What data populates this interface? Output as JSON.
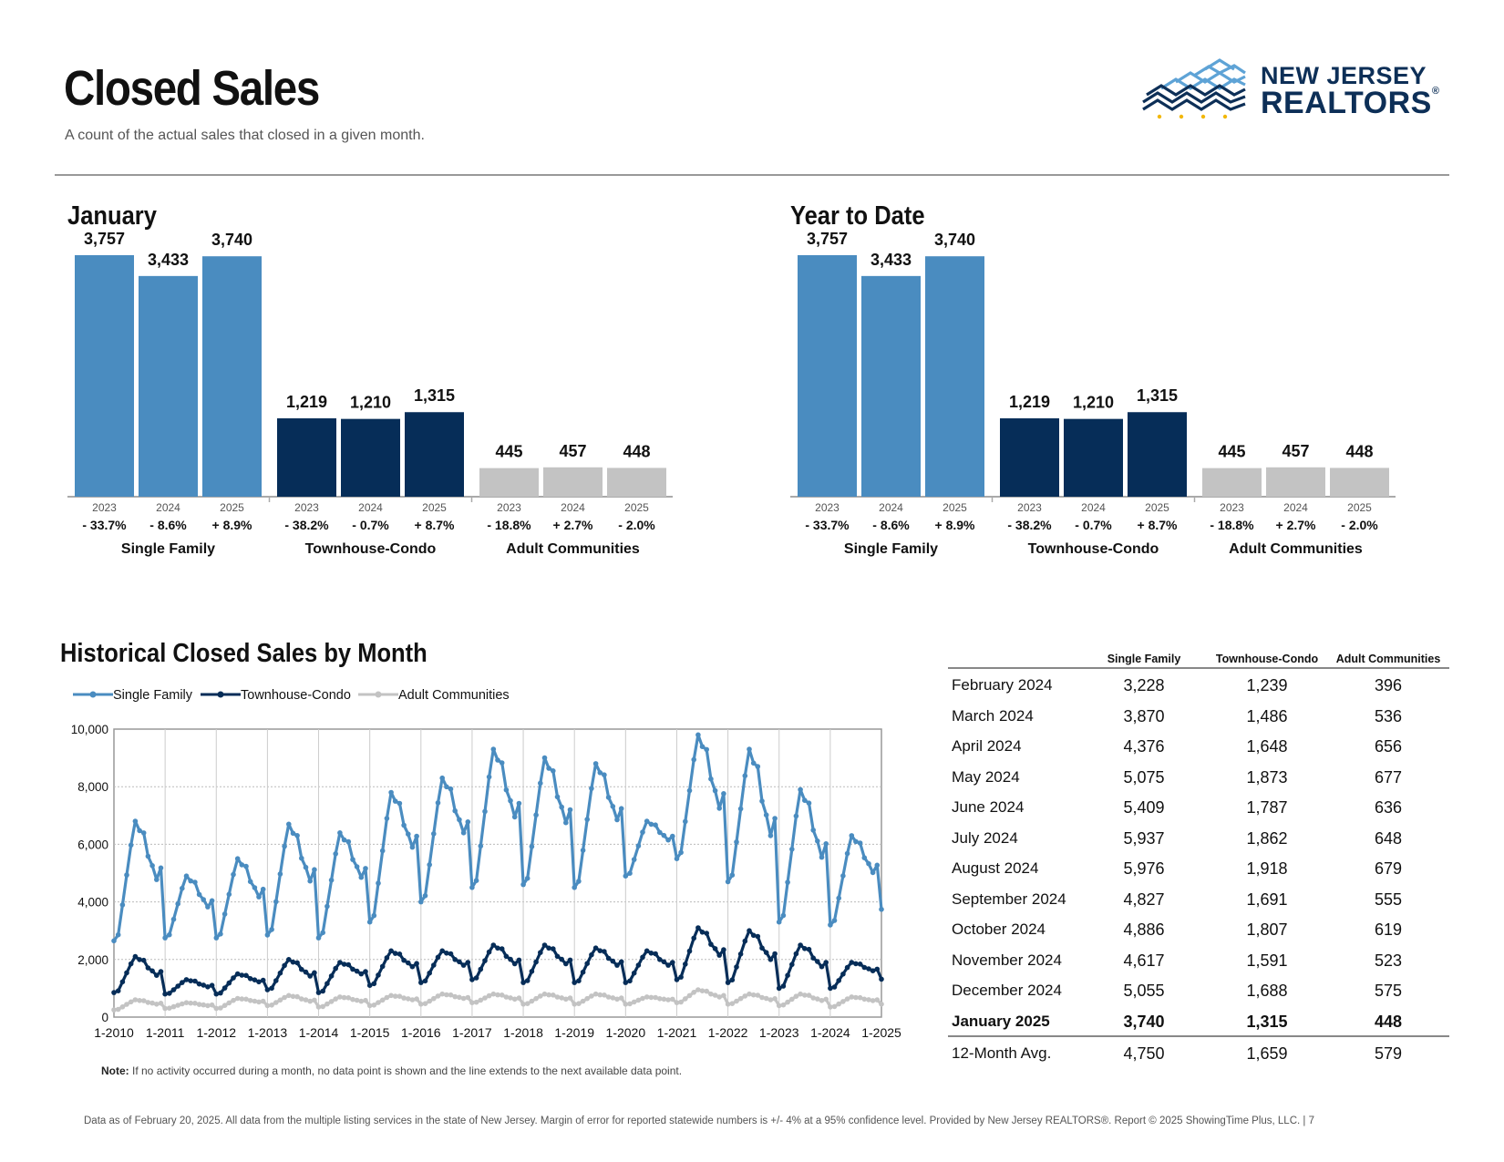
{
  "header": {
    "title": "Closed Sales",
    "subtitle": "A count of the actual sales that closed in a given month."
  },
  "logo": {
    "line1": "NEW JERSEY",
    "line2": "REALTORS",
    "reg": "®"
  },
  "colors": {
    "single_family": "#4a8cc0",
    "townhouse_condo": "#062d58",
    "adult_communities": "#c3c3c3",
    "logo_navy": "#0d2f57",
    "logo_light": "#5ea3d6",
    "logo_gold": "#f2b705"
  },
  "chart_data": [
    {
      "type": "bar",
      "title": "January",
      "groups": [
        "Single Family",
        "Townhouse-Condo",
        "Adult Communities"
      ],
      "years": [
        "2023",
        "2024",
        "2025"
      ],
      "series": [
        {
          "name": "Single Family",
          "values": [
            3757,
            3433,
            3740
          ],
          "labels": [
            "3,757",
            "3,433",
            "3,740"
          ],
          "changes": [
            "- 33.7%",
            "- 8.6%",
            "+ 8.9%"
          ]
        },
        {
          "name": "Townhouse-Condo",
          "values": [
            1219,
            1210,
            1315
          ],
          "labels": [
            "1,219",
            "1,210",
            "1,315"
          ],
          "changes": [
            "- 38.2%",
            "- 0.7%",
            "+ 8.7%"
          ]
        },
        {
          "name": "Adult Communities",
          "values": [
            445,
            457,
            448
          ],
          "labels": [
            "445",
            "457",
            "448"
          ],
          "changes": [
            "- 18.8%",
            "+ 2.7%",
            "- 2.0%"
          ]
        }
      ]
    },
    {
      "type": "bar",
      "title": "Year to Date",
      "groups": [
        "Single Family",
        "Townhouse-Condo",
        "Adult Communities"
      ],
      "years": [
        "2023",
        "2024",
        "2025"
      ],
      "series": [
        {
          "name": "Single Family",
          "values": [
            3757,
            3433,
            3740
          ],
          "labels": [
            "3,757",
            "3,433",
            "3,740"
          ],
          "changes": [
            "- 33.7%",
            "- 8.6%",
            "+ 8.9%"
          ]
        },
        {
          "name": "Townhouse-Condo",
          "values": [
            1219,
            1210,
            1315
          ],
          "labels": [
            "1,219",
            "1,210",
            "1,315"
          ],
          "changes": [
            "- 38.2%",
            "- 0.7%",
            "+ 8.7%"
          ]
        },
        {
          "name": "Adult Communities",
          "values": [
            445,
            457,
            448
          ],
          "labels": [
            "445",
            "457",
            "448"
          ],
          "changes": [
            "- 18.8%",
            "+ 2.7%",
            "- 2.0%"
          ]
        }
      ]
    },
    {
      "type": "line",
      "title": "Historical Closed Sales by Month",
      "x_ticks": [
        "1-2010",
        "1-2011",
        "1-2012",
        "1-2013",
        "1-2014",
        "1-2015",
        "1-2016",
        "1-2017",
        "1-2018",
        "1-2019",
        "1-2020",
        "1-2021",
        "1-2022",
        "1-2023",
        "1-2024",
        "1-2025"
      ],
      "y_ticks": [
        "0",
        "2,000",
        "4,000",
        "6,000",
        "8,000",
        "10,000"
      ],
      "ylim": [
        0,
        10000
      ],
      "grid": true,
      "legend": "top-left",
      "series": [
        {
          "name": "Single Family",
          "seasonal": {
            "jan": [
              2650,
              2750,
              2750,
              2850,
              2750,
              3300,
              4000,
              4500,
              4600,
              4500,
              4900,
              5500,
              4700,
              3300,
              3200,
              3740
            ],
            "jun": [
              6800,
              4900,
              5500,
              6700,
              6400,
              7800,
              8300,
              9300,
              9000,
              8800,
              6800,
              9800,
              9300,
              7900,
              6300,
              5976
            ]
          }
        },
        {
          "name": "Townhouse-Condo",
          "seasonal": {
            "jan": [
              850,
              800,
              800,
              950,
              850,
              1100,
              1200,
              1300,
              1200,
              1200,
              1200,
              1300,
              1200,
              1000,
              1000,
              1315
            ],
            "jun": [
              2100,
              1300,
              1500,
              2000,
              1900,
              2300,
              2300,
              2500,
              2500,
              2400,
              2300,
              3100,
              3000,
              2500,
              1900,
              1918
            ]
          }
        },
        {
          "name": "Adult Communities",
          "seasonal": {
            "jan": [
              250,
              300,
              300,
              400,
              350,
              400,
              450,
              500,
              450,
              450,
              450,
              500,
              450,
              400,
              350,
              448
            ],
            "jun": [
              600,
              500,
              650,
              750,
              700,
              750,
              800,
              800,
              800,
              800,
              700,
              950,
              800,
              800,
              700,
              679
            ]
          }
        }
      ],
      "note_label": "Note:",
      "note": " If no activity occurred during a month, no data point is shown and the line extends to the next available data point."
    },
    {
      "type": "table",
      "columns": [
        "",
        "Single Family",
        "Townhouse-Condo",
        "Adult Communities"
      ],
      "rows": [
        [
          "February 2024",
          "3,228",
          "1,239",
          "396"
        ],
        [
          "March 2024",
          "3,870",
          "1,486",
          "536"
        ],
        [
          "April 2024",
          "4,376",
          "1,648",
          "656"
        ],
        [
          "May 2024",
          "5,075",
          "1,873",
          "677"
        ],
        [
          "June 2024",
          "5,409",
          "1,787",
          "636"
        ],
        [
          "July 2024",
          "5,937",
          "1,862",
          "648"
        ],
        [
          "August 2024",
          "5,976",
          "1,918",
          "679"
        ],
        [
          "September 2024",
          "4,827",
          "1,691",
          "555"
        ],
        [
          "October 2024",
          "4,886",
          "1,807",
          "619"
        ],
        [
          "November 2024",
          "4,617",
          "1,591",
          "523"
        ],
        [
          "December 2024",
          "5,055",
          "1,688",
          "575"
        ],
        [
          "January 2025",
          "3,740",
          "1,315",
          "448"
        ]
      ],
      "avg_row": [
        "12-Month Avg.",
        "4,750",
        "1,659",
        "579"
      ]
    }
  ],
  "footer": "Data as of February 20, 2025. All data from the multiple listing services in the state of New Jersey. Margin of error for reported statewide numbers is +/- 4% at a 95% confidence level. Provided by New Jersey REALTORS®. Report © 2025 ShowingTime Plus, LLC. | 7"
}
